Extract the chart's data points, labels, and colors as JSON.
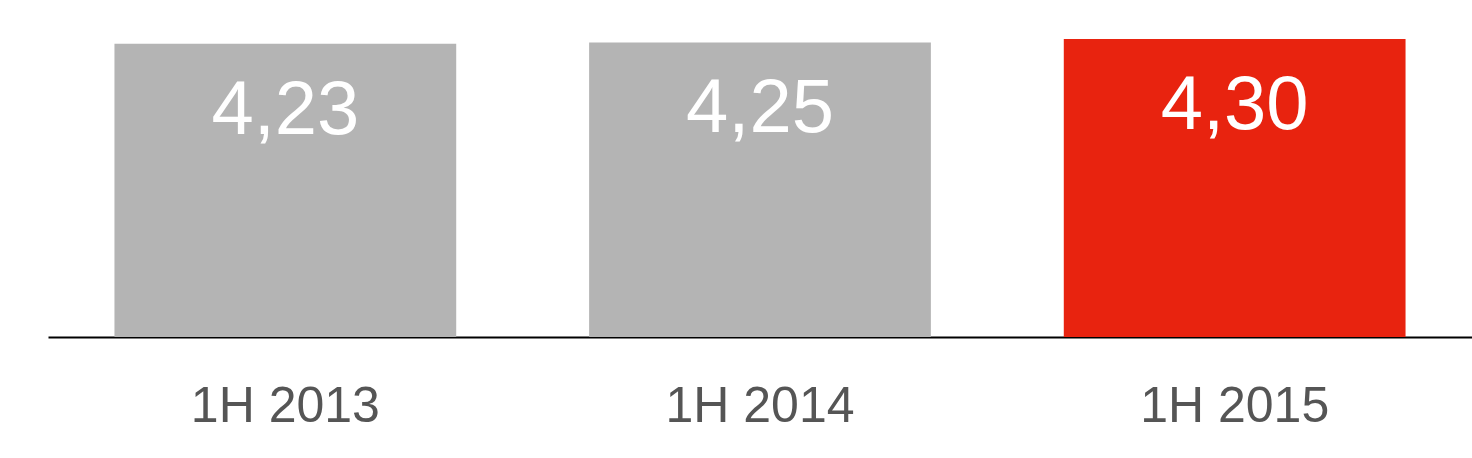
{
  "chart_data": {
    "type": "bar",
    "categories": [
      "1H 2013",
      "1H 2014",
      "1H 2015"
    ],
    "values": [
      4.23,
      4.25,
      4.3
    ],
    "value_labels": [
      "4,23",
      "4,25",
      "4,30"
    ],
    "colors": [
      "#b4b4b4",
      "#b4b4b4",
      "#e8230f"
    ]
  }
}
